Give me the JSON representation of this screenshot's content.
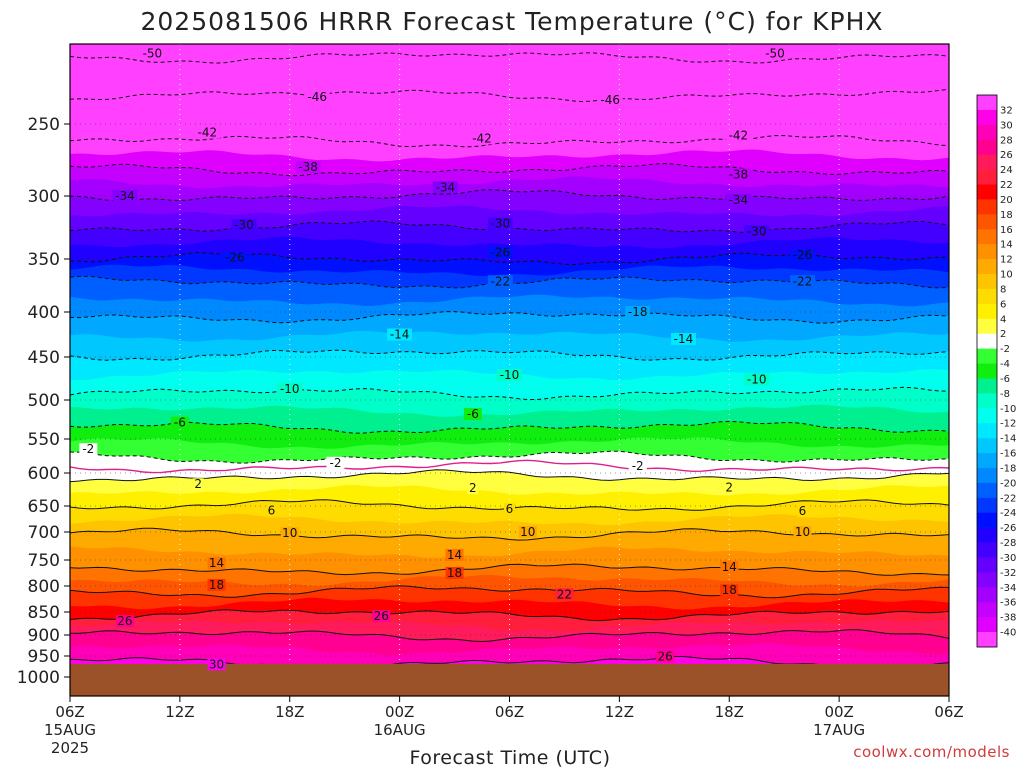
{
  "chart_data": {
    "type": "heatmap",
    "title": "2025081506 HRRR Forecast Temperature (°C) for KPHX",
    "xlabel": "Forecast Time (UTC)",
    "credit": "coolwx.com/models",
    "y_axis": {
      "scale": "pressure (inverted)",
      "range_hpa": [
        1000,
        200
      ],
      "tick_labels": [
        "250",
        "300",
        "350",
        "400",
        "450",
        "500",
        "550",
        "600",
        "650",
        "700",
        "750",
        "800",
        "850",
        "900",
        "950",
        "1000"
      ],
      "tick_values": [
        250,
        300,
        350,
        400,
        450,
        500,
        550,
        600,
        650,
        700,
        750,
        800,
        850,
        900,
        950,
        1000
      ]
    },
    "x_axis": {
      "range_hours": [
        0,
        48
      ],
      "ticks": [
        {
          "hour": 0,
          "label": "06Z",
          "date": "15AUG",
          "year": "2025"
        },
        {
          "hour": 6,
          "label": "12Z",
          "date": "",
          "year": ""
        },
        {
          "hour": 12,
          "label": "18Z",
          "date": "",
          "year": ""
        },
        {
          "hour": 18,
          "label": "00Z",
          "date": "16AUG",
          "year": ""
        },
        {
          "hour": 24,
          "label": "06Z",
          "date": "",
          "year": ""
        },
        {
          "hour": 30,
          "label": "12Z",
          "date": "",
          "year": ""
        },
        {
          "hour": 36,
          "label": "18Z",
          "date": "",
          "year": ""
        },
        {
          "hour": 42,
          "label": "00Z",
          "date": "17AUG",
          "year": ""
        },
        {
          "hour": 48,
          "label": "06Z",
          "date": "",
          "year": ""
        }
      ]
    },
    "grid": true,
    "colorbar": {
      "placement": "right",
      "labels": [
        "32",
        "30",
        "28",
        "26",
        "24",
        "22",
        "20",
        "18",
        "16",
        "14",
        "12",
        "10",
        "8",
        "6",
        "4",
        "2",
        "-2",
        "-4",
        "-6",
        "-8",
        "-10",
        "-12",
        "-14",
        "-16",
        "-18",
        "-20",
        "-22",
        "-24",
        "-26",
        "-28",
        "-30",
        "-32",
        "-34",
        "-36",
        "-38",
        "-40"
      ],
      "colors": [
        "#ff40ff",
        "#ff00e8",
        "#ff00b8",
        "#ff0090",
        "#ff1a5c",
        "#ff1e3c",
        "#ff0000",
        "#ff3300",
        "#ff5500",
        "#ff7400",
        "#ff9000",
        "#ffaa00",
        "#ffc400",
        "#ffdc00",
        "#fff000",
        "#ffff40",
        "#ffffff",
        "#33ff33",
        "#10ee10",
        "#00f090",
        "#00ffc8",
        "#00ffee",
        "#00e8ff",
        "#00c8ff",
        "#00a8ff",
        "#0088ff",
        "#0060ff",
        "#0038ff",
        "#0010ff",
        "#2000ff",
        "#4400ff",
        "#6400ff",
        "#8400ff",
        "#a400ff",
        "#c400ff",
        "#e000ff",
        "#ff40ff"
      ]
    },
    "isotherm_profile": {
      "temperature_c": [
        30,
        26,
        22,
        18,
        14,
        10,
        6,
        2,
        -2,
        -6,
        -10,
        -14,
        -18,
        -22,
        -26,
        -30,
        -34,
        -38,
        -42,
        -46,
        -50
      ],
      "pressure_hpa": [
        965,
        900,
        855,
        810,
        768,
        705,
        650,
        605,
        577,
        535,
        492,
        447,
        405,
        372,
        350,
        325,
        300,
        282,
        262,
        232,
        208
      ]
    },
    "contour_labels": [
      {
        "value": "-50",
        "hour": 4.5,
        "p": 206
      },
      {
        "value": "-50",
        "hour": 38.5,
        "p": 206
      },
      {
        "value": "-46",
        "hour": 13.5,
        "p": 233
      },
      {
        "value": "-46",
        "hour": 29.5,
        "p": 235
      },
      {
        "value": "-42",
        "hour": 7.5,
        "p": 256
      },
      {
        "value": "-42",
        "hour": 22.5,
        "p": 260
      },
      {
        "value": "-42",
        "hour": 36.5,
        "p": 258
      },
      {
        "value": "-38",
        "hour": 13.0,
        "p": 280
      },
      {
        "value": "-38",
        "hour": 36.5,
        "p": 285
      },
      {
        "value": "-34",
        "hour": 3.0,
        "p": 300
      },
      {
        "value": "-34",
        "hour": 20.5,
        "p": 294
      },
      {
        "value": "-34",
        "hour": 36.5,
        "p": 303
      },
      {
        "value": "-30",
        "hour": 9.5,
        "p": 323
      },
      {
        "value": "-30",
        "hour": 23.5,
        "p": 322
      },
      {
        "value": "-30",
        "hour": 37.5,
        "p": 328
      },
      {
        "value": "-26",
        "hour": 9.0,
        "p": 349
      },
      {
        "value": "-26",
        "hour": 23.5,
        "p": 345
      },
      {
        "value": "-26",
        "hour": 40.0,
        "p": 347
      },
      {
        "value": "-22",
        "hour": 23.5,
        "p": 371
      },
      {
        "value": "-22",
        "hour": 40.0,
        "p": 371
      },
      {
        "value": "-18",
        "hour": 31.0,
        "p": 400
      },
      {
        "value": "-14",
        "hour": 18.0,
        "p": 425
      },
      {
        "value": "-14",
        "hour": 33.5,
        "p": 430
      },
      {
        "value": "-10",
        "hour": 12.0,
        "p": 487
      },
      {
        "value": "-10",
        "hour": 24.0,
        "p": 471
      },
      {
        "value": "-10",
        "hour": 37.5,
        "p": 476
      },
      {
        "value": "-6",
        "hour": 6.0,
        "p": 529
      },
      {
        "value": "-6",
        "hour": 22.0,
        "p": 518
      },
      {
        "value": "-2",
        "hour": 1.0,
        "p": 565
      },
      {
        "value": "-2",
        "hour": 14.5,
        "p": 585
      },
      {
        "value": "-2",
        "hour": 31.0,
        "p": 590
      },
      {
        "value": "2",
        "hour": 7.0,
        "p": 617
      },
      {
        "value": "2",
        "hour": 22.0,
        "p": 623
      },
      {
        "value": "2",
        "hour": 36.0,
        "p": 622
      },
      {
        "value": "6",
        "hour": 11.0,
        "p": 659
      },
      {
        "value": "6",
        "hour": 24.0,
        "p": 656
      },
      {
        "value": "6",
        "hour": 40.0,
        "p": 660
      },
      {
        "value": "10",
        "hour": 12.0,
        "p": 702
      },
      {
        "value": "10",
        "hour": 25.0,
        "p": 700
      },
      {
        "value": "10",
        "hour": 40.0,
        "p": 700
      },
      {
        "value": "14",
        "hour": 8.0,
        "p": 756
      },
      {
        "value": "14",
        "hour": 21.0,
        "p": 741
      },
      {
        "value": "14",
        "hour": 36.0,
        "p": 763
      },
      {
        "value": "18",
        "hour": 8.0,
        "p": 798
      },
      {
        "value": "18",
        "hour": 21.0,
        "p": 775
      },
      {
        "value": "18",
        "hour": 36.0,
        "p": 808
      },
      {
        "value": "22",
        "hour": 27.0,
        "p": 816
      },
      {
        "value": "26",
        "hour": 3.0,
        "p": 870
      },
      {
        "value": "26",
        "hour": 17.0,
        "p": 859
      },
      {
        "value": "26",
        "hour": 32.5,
        "p": 951
      },
      {
        "value": "30",
        "hour": 8.0,
        "p": 970
      }
    ],
    "ground_color": "#9b5228",
    "freezing_line_color": "#e0208a"
  }
}
